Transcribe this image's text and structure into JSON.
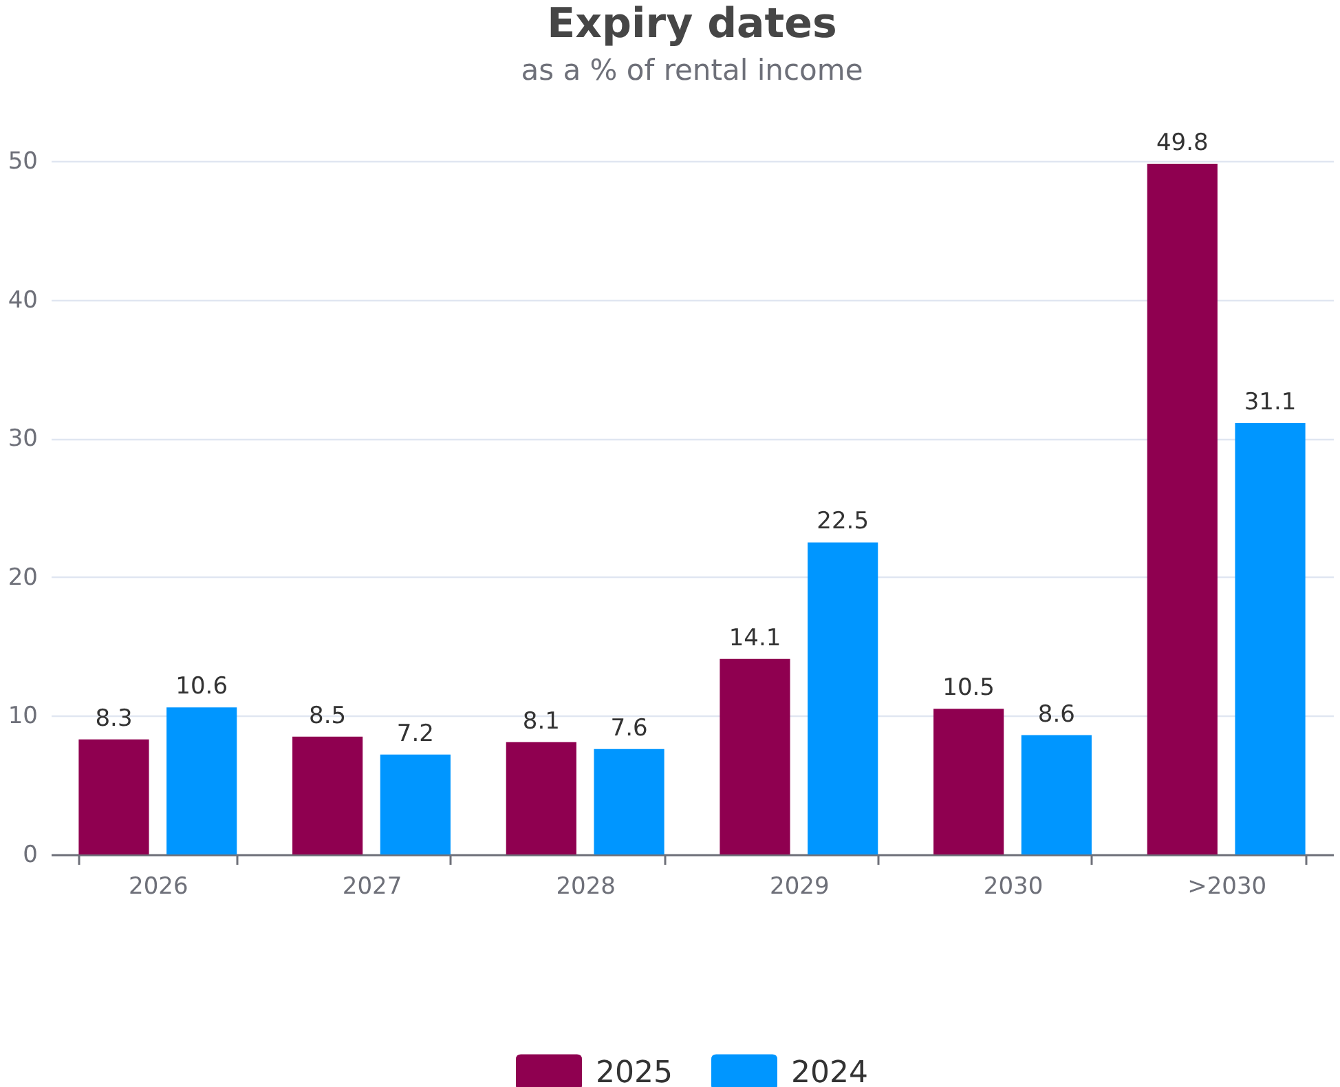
{
  "chart_data": {
    "type": "bar",
    "title": "Expiry dates",
    "subtitle": "as a % of rental income",
    "categories": [
      "2026",
      "2027",
      "2028",
      "2029",
      "2030",
      ">2030"
    ],
    "series": [
      {
        "name": "2025",
        "color": "#8f0050",
        "values": [
          8.3,
          8.5,
          8.1,
          14.1,
          10.5,
          49.8
        ]
      },
      {
        "name": "2024",
        "color": "#0096ff",
        "values": [
          10.6,
          7.2,
          7.6,
          22.5,
          8.6,
          31.1
        ]
      }
    ],
    "ylim": [
      0,
      50
    ],
    "yticks": [
      0,
      10,
      20,
      30,
      40,
      50
    ],
    "grid": "y",
    "legend": "bottom",
    "data_labels": true
  }
}
